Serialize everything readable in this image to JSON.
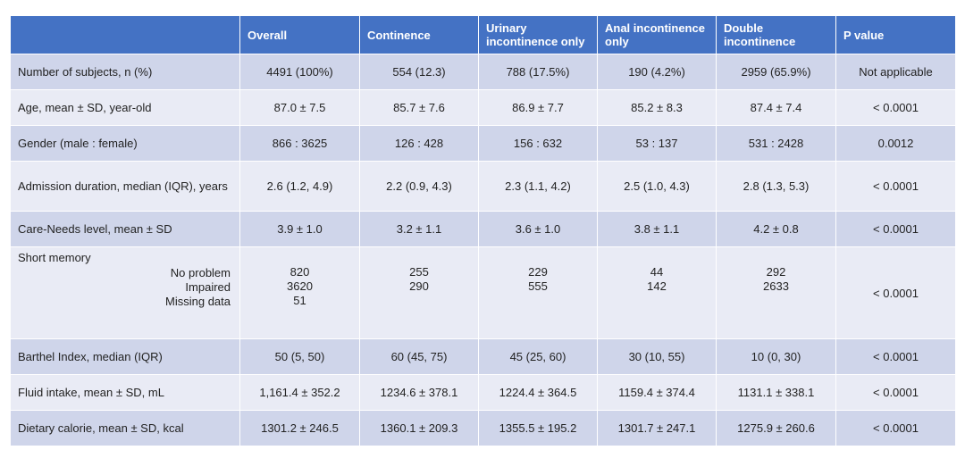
{
  "table": {
    "headers": [
      "",
      "Overall",
      "Continence",
      "Urinary incontinence only",
      "Anal incontinence only",
      "Double incontinence",
      "P value"
    ],
    "rows": [
      {
        "label": "Number of subjects, n (%)",
        "values": [
          "4491 (100%)",
          "554 (12.3)",
          "788 (17.5%)",
          "190 (4.2%)",
          "2959 (65.9%)",
          "Not applicable"
        ]
      },
      {
        "label": "Age, mean ± SD, year-old",
        "values": [
          "87.0 ± 7.5",
          "85.7 ± 7.6",
          "86.9 ± 7.7",
          "85.2 ± 8.3",
          "87.4 ± 7.4",
          "< 0.0001"
        ]
      },
      {
        "label": "Gender (male : female)",
        "values": [
          "866 : 3625",
          "126 : 428",
          "156 : 632",
          "53 : 137",
          "531 : 2428",
          "0.0012"
        ]
      },
      {
        "label": "Admission duration, median (IQR), years",
        "values": [
          "2.6 (1.2, 4.9)",
          "2.2 (0.9, 4.3)",
          "2.3 (1.1, 4.2)",
          "2.5 (1.0, 4.3)",
          "2.8 (1.3, 5.3)",
          "< 0.0001"
        ]
      },
      {
        "label": "Care-Needs level, mean ± SD",
        "values": [
          "3.9 ± 1.0",
          "3.2 ± 1.1",
          "3.6 ± 1.0",
          "3.8 ± 1.1",
          "4.2 ± 0.8",
          "< 0.0001"
        ]
      }
    ],
    "memory": {
      "label": "Short memory",
      "sublabels": [
        "No problem",
        "Impaired",
        "Missing data"
      ],
      "overall": [
        "820",
        "3620",
        "51"
      ],
      "continence": [
        "255",
        "290"
      ],
      "urinary": [
        "229",
        "555"
      ],
      "anal": [
        "44",
        "142"
      ],
      "double": [
        "292",
        "2633"
      ],
      "p": "< 0.0001"
    },
    "rows_after": [
      {
        "label": "Barthel Index, median (IQR)",
        "values": [
          "50 (5, 50)",
          "60 (45, 75)",
          "45 (25, 60)",
          "30 (10, 55)",
          "10 (0, 30)",
          "< 0.0001"
        ]
      },
      {
        "label": "Fluid intake, mean ± SD, mL",
        "values": [
          "1,161.4 ± 352.2",
          "1234.6 ± 378.1",
          "1224.4 ± 364.5",
          "1159.4 ± 374.4",
          "1131.1 ± 338.1",
          "< 0.0001"
        ]
      },
      {
        "label": "Dietary calorie, mean ± SD, kcal",
        "values": [
          "1301.2 ± 246.5",
          "1360.1 ± 209.3",
          "1355.5 ± 195.2",
          "1301.7 ± 247.1",
          "1275.9 ± 260.6",
          "< 0.0001"
        ]
      }
    ]
  }
}
